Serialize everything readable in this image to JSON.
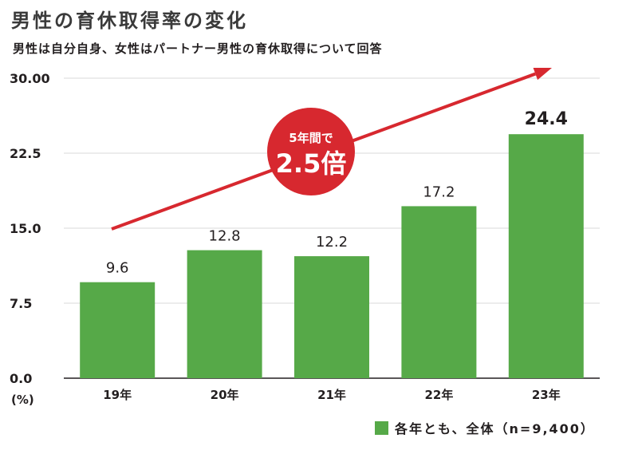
{
  "title": "男性の育休取得率の変化",
  "subtitle": "男性は自分自身、女性はパートナー男性の育休取得について回答",
  "unit_label": "(%)",
  "legend_label": "各年とも、全体（n=9,400）",
  "callout": {
    "line1": "5年間で",
    "line2": "2.5倍"
  },
  "colors": {
    "bar": "#56a948",
    "arrow": "#d7282f",
    "callout": "#d7282f",
    "grid": "#d9d9d9"
  },
  "chart_data": {
    "type": "bar",
    "title": "男性の育休取得率の変化",
    "xlabel": "",
    "ylabel": "(%)",
    "categories": [
      "19年",
      "20年",
      "21年",
      "22年",
      "23年"
    ],
    "values": [
      9.6,
      12.8,
      12.2,
      17.2,
      24.4
    ],
    "labels": [
      "9.6",
      "12.8",
      "12.2",
      "17.2",
      "24.4"
    ],
    "yticks": [
      0,
      7.5,
      15,
      22.5,
      30
    ],
    "ytick_labels": [
      "0.0",
      "7.5",
      "15.0",
      "22.5",
      "30.00"
    ],
    "ylim": [
      0,
      30
    ],
    "grid": true,
    "series": [
      {
        "name": "各年とも、全体（n=9,400）",
        "values": [
          9.6,
          12.8,
          12.2,
          17.2,
          24.4
        ]
      }
    ]
  }
}
